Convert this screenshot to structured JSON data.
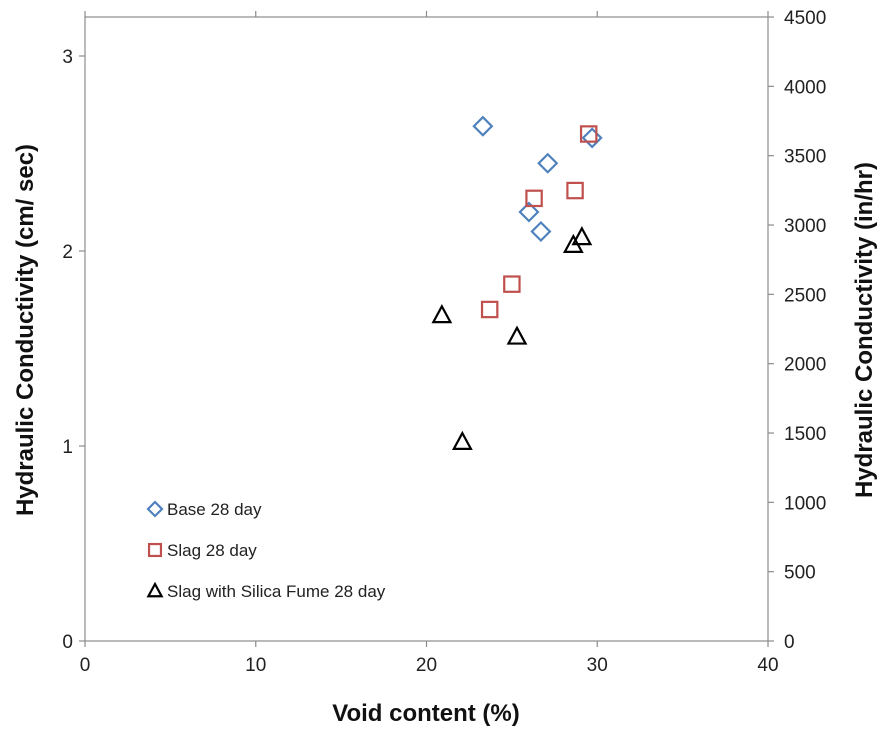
{
  "chart_data": {
    "type": "scatter",
    "title": "",
    "xlabel": "Void content (%)",
    "ylabel": "Hydraulic Conductivity  (cm/ sec)",
    "y2label": "Hydraulic Conductivity (in/hr)",
    "xlim": [
      0,
      40
    ],
    "ylim": [
      0,
      3.2
    ],
    "y2lim": [
      0,
      4500
    ],
    "x_ticks": [
      "0",
      "10",
      "20",
      "30",
      "40"
    ],
    "y_ticks": [
      "0",
      "1",
      "2",
      "3"
    ],
    "y2_ticks": [
      "0",
      "500",
      "1000",
      "1500",
      "2000",
      "2500",
      "3000",
      "3500",
      "4000",
      "4500"
    ],
    "grid": false,
    "legend_position": "bottom-left",
    "series": [
      {
        "name": "Base 28 day",
        "marker": "diamond",
        "color": "#4F81BD",
        "points": [
          {
            "x": 23.3,
            "y": 2.64
          },
          {
            "x": 27.1,
            "y": 2.45
          },
          {
            "x": 26.0,
            "y": 2.2
          },
          {
            "x": 26.7,
            "y": 2.1
          },
          {
            "x": 29.7,
            "y": 2.58
          }
        ]
      },
      {
        "name": "Slag 28 day",
        "marker": "square",
        "color": "#C0504D",
        "points": [
          {
            "x": 29.5,
            "y": 2.6
          },
          {
            "x": 28.7,
            "y": 2.31
          },
          {
            "x": 26.3,
            "y": 2.27
          },
          {
            "x": 25.0,
            "y": 1.83
          },
          {
            "x": 23.7,
            "y": 1.7
          }
        ]
      },
      {
        "name": "Slag with Silica Fume 28 day",
        "marker": "triangle",
        "color": "#000000",
        "points": [
          {
            "x": 29.1,
            "y": 2.07
          },
          {
            "x": 28.6,
            "y": 2.03
          },
          {
            "x": 20.9,
            "y": 1.67
          },
          {
            "x": 25.3,
            "y": 1.56
          },
          {
            "x": 22.1,
            "y": 1.02
          }
        ]
      }
    ]
  }
}
